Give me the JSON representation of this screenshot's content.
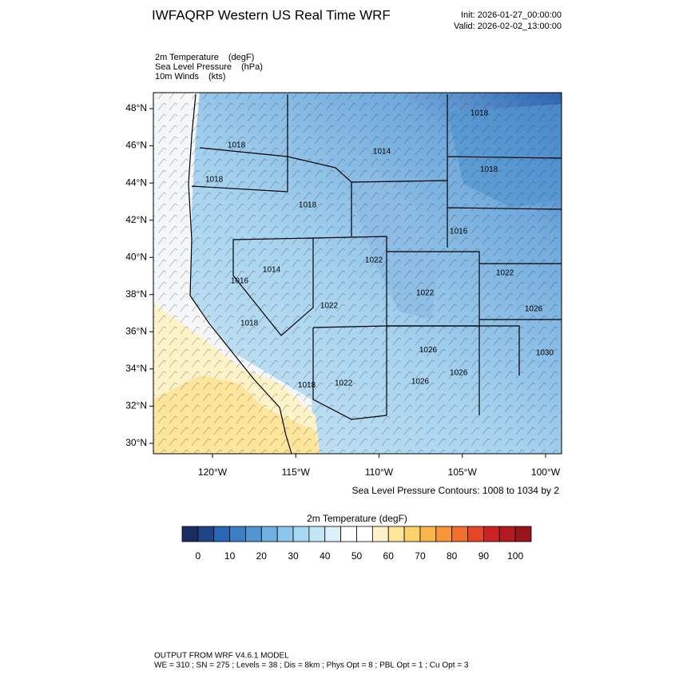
{
  "header": {
    "title": "IWFAQRP Western US Real Time WRF",
    "init": "Init: 2026-01-27_00:00:00",
    "valid": "Valid: 2026-02-02_13:00:00"
  },
  "fields": [
    {
      "name": "2m Temperature",
      "units": "(degF)"
    },
    {
      "name": "Sea Level Pressure",
      "units": "(hPa)"
    },
    {
      "name": "10m Winds",
      "units": "(kts)"
    }
  ],
  "map": {
    "lon_range": [
      -123.55,
      -99.04
    ],
    "lat_range": [
      29.44,
      48.86
    ],
    "lat_ticks": [
      {
        "value": 30,
        "label": "30°N"
      },
      {
        "value": 32,
        "label": "32°N"
      },
      {
        "value": 34,
        "label": "34°N"
      },
      {
        "value": 36,
        "label": "36°N"
      },
      {
        "value": 38,
        "label": "38°N"
      },
      {
        "value": 40,
        "label": "40°N"
      },
      {
        "value": 42,
        "label": "42°N"
      },
      {
        "value": 44,
        "label": "44°N"
      },
      {
        "value": 46,
        "label": "46°N"
      },
      {
        "value": 48,
        "label": "48°N"
      }
    ],
    "lon_ticks": [
      {
        "value": -120,
        "label": "120°W"
      },
      {
        "value": -115,
        "label": "115°W"
      },
      {
        "value": -110,
        "label": "110°W"
      },
      {
        "value": -105,
        "label": "105°W"
      },
      {
        "value": -100,
        "label": "100°W"
      }
    ],
    "contour_labels": [
      {
        "value": 1018,
        "lon": -118.56,
        "lat": 46.02
      },
      {
        "value": 1014,
        "lon": -109.83,
        "lat": 45.68
      },
      {
        "value": 1018,
        "lon": -119.9,
        "lat": 44.18
      },
      {
        "value": 1018,
        "lon": -114.29,
        "lat": 42.8
      },
      {
        "value": 1018,
        "lon": -103.4,
        "lat": 44.73
      },
      {
        "value": 1018,
        "lon": -103.98,
        "lat": 47.74
      },
      {
        "value": 1016,
        "lon": -105.22,
        "lat": 41.38
      },
      {
        "value": 1022,
        "lon": -110.31,
        "lat": 39.84
      },
      {
        "value": 1014,
        "lon": -116.45,
        "lat": 39.32
      },
      {
        "value": 1016,
        "lon": -118.37,
        "lat": 38.72
      },
      {
        "value": 1022,
        "lon": -102.44,
        "lat": 39.15
      },
      {
        "value": 1022,
        "lon": -107.24,
        "lat": 38.08
      },
      {
        "value": 1022,
        "lon": -113.0,
        "lat": 37.39
      },
      {
        "value": 1026,
        "lon": -100.72,
        "lat": 37.22
      },
      {
        "value": 1026,
        "lon": -107.05,
        "lat": 35.02
      },
      {
        "value": 1030,
        "lon": -100.05,
        "lat": 34.85
      },
      {
        "value": 1026,
        "lon": -105.22,
        "lat": 33.78
      },
      {
        "value": 1026,
        "lon": -107.53,
        "lat": 33.31
      },
      {
        "value": 1018,
        "lon": -114.34,
        "lat": 33.13
      },
      {
        "value": 1022,
        "lon": -112.13,
        "lat": 33.22
      },
      {
        "value": 1018,
        "lon": -117.79,
        "lat": 36.44
      }
    ],
    "contour_note": "Sea Level Pressure Contours: 1008 to 1034 by 2"
  },
  "colorbar": {
    "title": "2m Temperature  (degF)",
    "bounds": [
      -5,
      0,
      5,
      10,
      15,
      20,
      25,
      30,
      35,
      40,
      45,
      50,
      55,
      60,
      65,
      70,
      75,
      80,
      85,
      90,
      95,
      100,
      105
    ],
    "colors": [
      "#1b2c62",
      "#204488",
      "#2966b5",
      "#3b7fc4",
      "#5296d1",
      "#6fb0de",
      "#8cc6ea",
      "#a7d8f1",
      "#c3e6f6",
      "#dcf0fa",
      "#ffffff",
      "#ffffff",
      "#fdf2c8",
      "#fde59b",
      "#fcd06a",
      "#fbb44b",
      "#f89538",
      "#f26f2e",
      "#e54628",
      "#cc2226",
      "#b01a20",
      "#961519"
    ],
    "ticks": [
      0,
      10,
      20,
      30,
      40,
      50,
      60,
      70,
      80,
      90,
      100
    ]
  },
  "footer": {
    "line1": "OUTPUT FROM WRF V4.6.1 MODEL",
    "line2": "WE = 310 ; SN = 275 ; Levels = 38 ; Dis = 8km ; Phys Opt = 8 ; PBL Opt = 1 ; Cu Opt = 3"
  }
}
